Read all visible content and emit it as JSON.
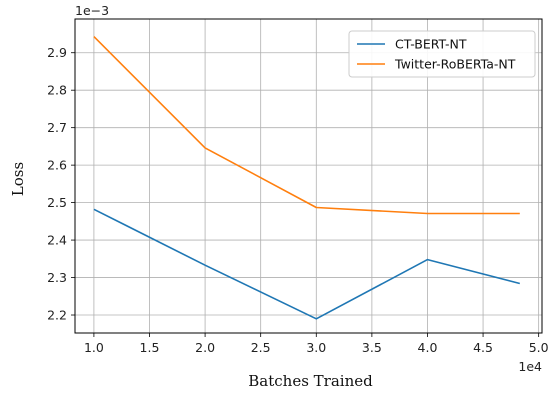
{
  "chart_data": {
    "type": "line",
    "title": "",
    "xlabel": "Batches Trained",
    "ylabel": "Loss",
    "x_multiplier": "1e4",
    "y_multiplier": "1e−3",
    "xlim": [
      0.83,
      5.03
    ],
    "ylim": [
      2.152,
      2.99
    ],
    "xticks": [
      1.0,
      1.5,
      2.0,
      2.5,
      3.0,
      3.5,
      4.0,
      4.5,
      5.0
    ],
    "xtick_labels": [
      "1.0",
      "1.5",
      "2.0",
      "2.5",
      "3.0",
      "3.5",
      "4.0",
      "4.5",
      "5.0"
    ],
    "yticks": [
      2.2,
      2.3,
      2.4,
      2.5,
      2.6,
      2.7,
      2.8,
      2.9
    ],
    "ytick_labels": [
      "2.2",
      "2.3",
      "2.4",
      "2.5",
      "2.6",
      "2.7",
      "2.8",
      "2.9"
    ],
    "grid": true,
    "legend_position": "top-right",
    "series": [
      {
        "name": "CT-BERT-NT",
        "color": "#1f77b4",
        "x": [
          1.0,
          2.0,
          3.0,
          4.0,
          4.83
        ],
        "y": [
          2.482,
          2.333,
          2.19,
          2.348,
          2.284
        ]
      },
      {
        "name": "Twitter-RoBERTa-NT",
        "color": "#ff7f0e",
        "x": [
          1.0,
          2.0,
          3.0,
          4.0,
          4.83
        ],
        "y": [
          2.943,
          2.646,
          2.487,
          2.471,
          2.471
        ]
      }
    ]
  }
}
